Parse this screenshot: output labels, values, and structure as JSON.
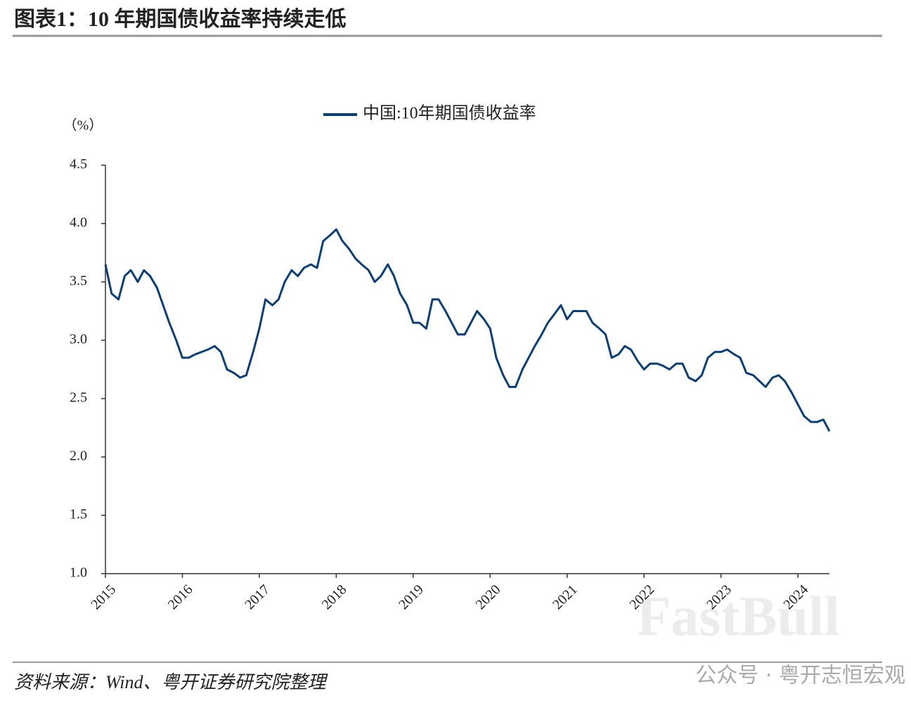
{
  "chart_data": {
    "type": "line",
    "title": "图表1：10 年期国债收益率持续走低",
    "y_label": "（%）",
    "source": "资料来源：Wind、粤开证券研究院整理",
    "watermark": "公众号 · 粤开志恒宏观",
    "watermark_logo": "FastBull",
    "xlim": [
      2015,
      2024.41
    ],
    "xticks": [
      2015,
      2016,
      2017,
      2018,
      2019,
      2020,
      2021,
      2022,
      2023,
      2024
    ],
    "ylim": [
      1,
      4.5
    ],
    "yticks": [
      {
        "value": 1,
        "label": "1.0"
      },
      1.5,
      {
        "value": 2,
        "label": "2.0"
      },
      2.5,
      {
        "value": 3,
        "label": "3.0"
      },
      3.5,
      {
        "value": 4,
        "label": "4.0"
      },
      4.5
    ],
    "grid": false,
    "legend": "top",
    "x": [
      2015,
      2015.08,
      2015.17,
      2015.25,
      2015.33,
      2015.42,
      2015.5,
      2015.58,
      2015.67,
      2015.75,
      2015.83,
      2015.92,
      2016,
      2016.08,
      2016.17,
      2016.25,
      2016.33,
      2016.42,
      2016.5,
      2016.58,
      2016.67,
      2016.75,
      2016.83,
      2016.92,
      2017,
      2017.08,
      2017.17,
      2017.25,
      2017.33,
      2017.42,
      2017.5,
      2017.58,
      2017.67,
      2017.75,
      2017.83,
      2017.92,
      2018,
      2018.08,
      2018.17,
      2018.25,
      2018.33,
      2018.42,
      2018.5,
      2018.58,
      2018.67,
      2018.75,
      2018.83,
      2018.92,
      2019,
      2019.08,
      2019.17,
      2019.25,
      2019.33,
      2019.42,
      2019.5,
      2019.58,
      2019.67,
      2019.75,
      2019.83,
      2019.92,
      2020,
      2020.08,
      2020.17,
      2020.25,
      2020.33,
      2020.42,
      2020.5,
      2020.58,
      2020.67,
      2020.75,
      2020.83,
      2020.92,
      2021,
      2021.08,
      2021.17,
      2021.25,
      2021.33,
      2021.42,
      2021.5,
      2021.58,
      2021.67,
      2021.75,
      2021.83,
      2021.92,
      2022,
      2022.08,
      2022.17,
      2022.25,
      2022.33,
      2022.42,
      2022.5,
      2022.58,
      2022.67,
      2022.75,
      2022.83,
      2022.92,
      2023,
      2023.08,
      2023.17,
      2023.25,
      2023.33,
      2023.42,
      2023.5,
      2023.58,
      2023.67,
      2023.75,
      2023.83,
      2023.92,
      2024,
      2024.08,
      2024.17,
      2024.25,
      2024.33,
      2024.41
    ],
    "series": [
      {
        "name": "中国:10年期国债收益率",
        "color": "#0b3f7a",
        "values": [
          3.65,
          3.4,
          3.35,
          3.55,
          3.6,
          3.5,
          3.6,
          3.55,
          3.45,
          3.3,
          3.15,
          3.0,
          2.85,
          2.85,
          2.88,
          2.9,
          2.92,
          2.95,
          2.9,
          2.75,
          2.72,
          2.68,
          2.7,
          2.9,
          3.1,
          3.35,
          3.3,
          3.35,
          3.5,
          3.6,
          3.55,
          3.62,
          3.65,
          3.62,
          3.85,
          3.9,
          3.95,
          3.85,
          3.78,
          3.7,
          3.65,
          3.6,
          3.5,
          3.55,
          3.65,
          3.55,
          3.4,
          3.3,
          3.15,
          3.15,
          3.1,
          3.35,
          3.35,
          3.25,
          3.15,
          3.05,
          3.05,
          3.15,
          3.25,
          3.18,
          3.1,
          2.85,
          2.7,
          2.6,
          2.6,
          2.75,
          2.85,
          2.95,
          3.05,
          3.15,
          3.22,
          3.3,
          3.18,
          3.25,
          3.25,
          3.25,
          3.15,
          3.1,
          3.05,
          2.85,
          2.88,
          2.95,
          2.92,
          2.82,
          2.75,
          2.8,
          2.8,
          2.78,
          2.75,
          2.8,
          2.8,
          2.68,
          2.65,
          2.7,
          2.85,
          2.9,
          2.9,
          2.92,
          2.88,
          2.85,
          2.72,
          2.7,
          2.65,
          2.6,
          2.68,
          2.7,
          2.65,
          2.55,
          2.45,
          2.35,
          2.3,
          2.3,
          2.32,
          2.22
        ]
      }
    ]
  }
}
